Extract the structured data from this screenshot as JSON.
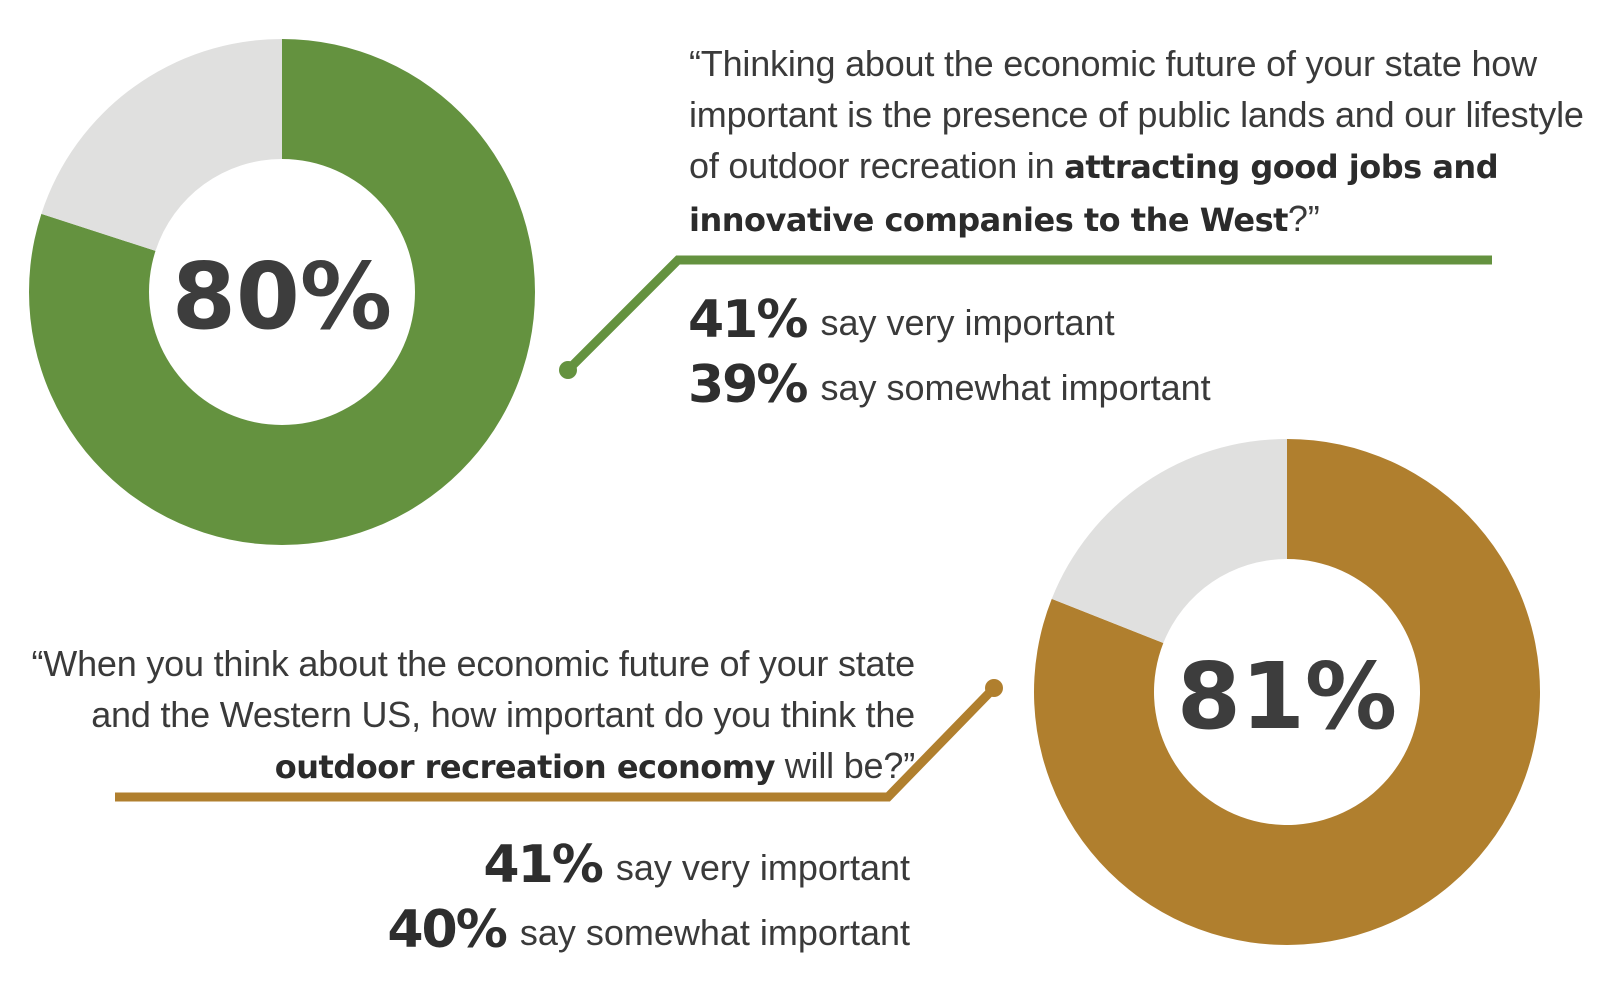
{
  "colors": {
    "green": "#64923f",
    "gold": "#b07f2e",
    "remainder": "#e0e0df",
    "text": "#3a3a3a"
  },
  "chart_data": [
    {
      "type": "pie",
      "donut": true,
      "center_label": "80%",
      "values": [
        80,
        20
      ],
      "segment_colors": [
        "#64923f",
        "#e0e0df"
      ],
      "question": {
        "pre": "“Thinking about the economic future of your state how important is the presence of public lands and our lifestyle of outdoor recreation in ",
        "bold": "attracting good jobs and innovative companies to the West",
        "post": "?”"
      },
      "breakdown": [
        {
          "pct": "41%",
          "label": "say very important"
        },
        {
          "pct": "39%",
          "label": "say somewhat important"
        }
      ]
    },
    {
      "type": "pie",
      "donut": true,
      "center_label": "81%",
      "values": [
        81,
        19
      ],
      "segment_colors": [
        "#b07f2e",
        "#e0e0df"
      ],
      "question": {
        "pre": "“When you think about the economic future of your state and the Western US, how important do you think the ",
        "bold": "outdoor recreation economy",
        "post": " will be?”"
      },
      "breakdown": [
        {
          "pct": "41%",
          "label": "say very important"
        },
        {
          "pct": "40%",
          "label": "say somewhat important"
        }
      ]
    }
  ]
}
